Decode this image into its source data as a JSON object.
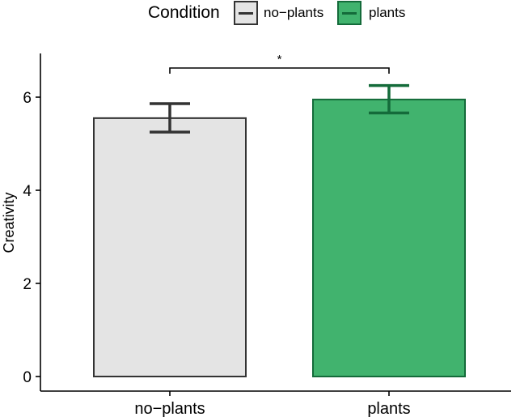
{
  "chart_data": {
    "type": "bar",
    "categories": [
      "no−plants",
      "plants"
    ],
    "series": [
      {
        "name": "",
        "values": [
          5.55,
          5.95
        ],
        "error_low": [
          5.25,
          5.66
        ],
        "error_high": [
          5.86,
          6.25
        ]
      }
    ],
    "legend": {
      "title": "Condition",
      "entries": [
        "no−plants",
        "plants"
      ],
      "placement": "top"
    },
    "title": "",
    "xlabel": "",
    "ylabel": "Creativity",
    "ylim": [
      0,
      6.5
    ],
    "yticks": [
      0,
      2,
      4,
      6
    ],
    "grid": false,
    "significance": {
      "from": 0,
      "to": 1,
      "label": "*"
    },
    "colors": {
      "no-plants_fill": "#e4e4e4",
      "no-plants_stroke": "#333333",
      "plants_fill": "#41b36e",
      "plants_stroke": "#146b3a"
    }
  }
}
